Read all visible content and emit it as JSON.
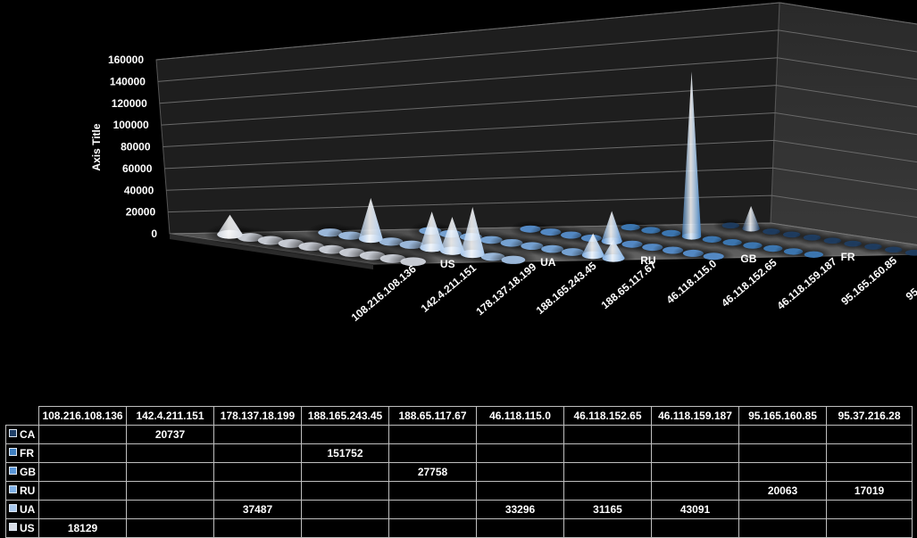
{
  "chart_data": {
    "type": "bar",
    "subtype": "3d-cone",
    "title": "",
    "xlabel": "",
    "ylabel": "Axis Title",
    "ylim": [
      0,
      160000
    ],
    "yticks": [
      "0",
      "20000",
      "40000",
      "60000",
      "80000",
      "100000",
      "120000",
      "140000",
      "160000"
    ],
    "grid": true,
    "categories": [
      "108.216.108.136",
      "142.4.211.151",
      "178.137.18.199",
      "188.165.243.45",
      "188.65.117.67",
      "46.118.115.0",
      "46.118.152.65",
      "46.118.159.187",
      "95.165.160.85",
      "95.37.216.28"
    ],
    "series": [
      {
        "name": "CA",
        "color": "#1f3f66",
        "values": [
          null,
          20737,
          null,
          null,
          null,
          null,
          null,
          null,
          null,
          null
        ]
      },
      {
        "name": "FR",
        "color": "#3f7fc0",
        "values": [
          null,
          null,
          null,
          151752,
          null,
          null,
          null,
          null,
          null,
          null
        ]
      },
      {
        "name": "GB",
        "color": "#5a95d6",
        "values": [
          null,
          null,
          null,
          null,
          27758,
          null,
          null,
          null,
          null,
          null
        ]
      },
      {
        "name": "RU",
        "color": "#7fb0e6",
        "values": [
          null,
          null,
          null,
          null,
          null,
          null,
          null,
          null,
          20063,
          17019
        ]
      },
      {
        "name": "UA",
        "color": "#a9c9ee",
        "values": [
          null,
          null,
          37487,
          null,
          null,
          33296,
          31165,
          43091,
          null,
          null
        ]
      },
      {
        "name": "US",
        "color": "#d8dde6",
        "values": [
          18129,
          null,
          null,
          null,
          null,
          null,
          null,
          null,
          null,
          null
        ]
      }
    ]
  },
  "table": {
    "rows": [
      {
        "label": "CA",
        "cells": [
          "",
          "20737",
          "",
          "",
          "",
          "",
          "",
          "",
          "",
          ""
        ]
      },
      {
        "label": "FR",
        "cells": [
          "",
          "",
          "",
          "151752",
          "",
          "",
          "",
          "",
          "",
          ""
        ]
      },
      {
        "label": "GB",
        "cells": [
          "",
          "",
          "",
          "",
          "27758",
          "",
          "",
          "",
          "",
          ""
        ]
      },
      {
        "label": "RU",
        "cells": [
          "",
          "",
          "",
          "",
          "",
          "",
          "",
          "",
          "20063",
          "17019"
        ]
      },
      {
        "label": "UA",
        "cells": [
          "",
          "",
          "37487",
          "",
          "",
          "33296",
          "31165",
          "43091",
          "",
          ""
        ]
      },
      {
        "label": "US",
        "cells": [
          "18129",
          "",
          "",
          "",
          "",
          "",
          "",
          "",
          "",
          ""
        ]
      }
    ]
  }
}
